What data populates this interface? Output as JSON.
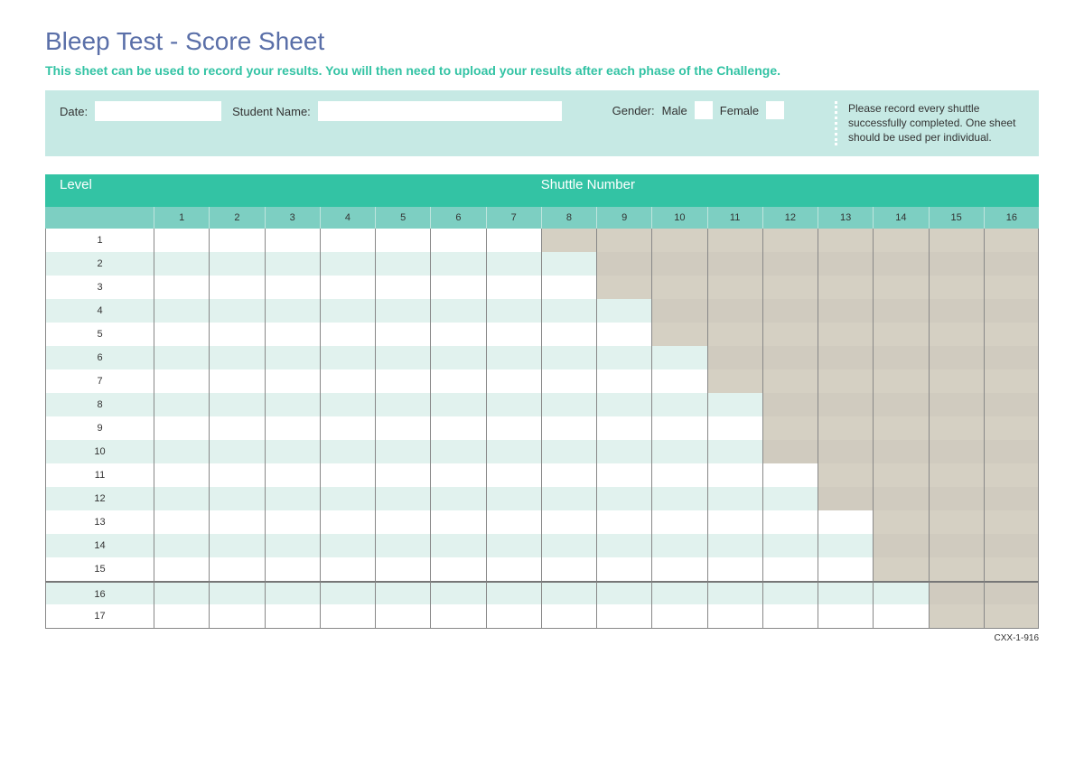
{
  "title": "Bleep Test - Score Sheet",
  "subtitle": "This sheet can be used to record your results. You will then need to upload your results after each phase of the Challenge.",
  "form": {
    "date_label": "Date:",
    "name_label": "Student Name:",
    "gender_label": "Gender:",
    "male_label": "Male",
    "female_label": "Female",
    "date_value": "",
    "name_value": "",
    "note": "Please record every shuttle successfully completed. One sheet should be used per individual."
  },
  "table": {
    "header_level": "Level",
    "header_shuttle": "Shuttle Number",
    "shuttle_count": 16,
    "levels": [
      1,
      2,
      3,
      4,
      5,
      6,
      7,
      8,
      9,
      10,
      11,
      12,
      13,
      14,
      15,
      16,
      17
    ],
    "shuttles_per_level": [
      7,
      8,
      8,
      9,
      9,
      10,
      10,
      11,
      11,
      11,
      12,
      12,
      13,
      13,
      13,
      14,
      14
    ],
    "colors": {
      "header_bg": "#33c3a4",
      "subheader_bg": "#7dcfc2",
      "active_odd": "#ffffff",
      "active_even": "#e1f2ee",
      "inactive_odd": "#d5d0c3",
      "inactive_even": "#d0cbbf",
      "border": "#888888",
      "title": "#5a6fa8",
      "subtitle": "#33c3a4",
      "formbar_bg": "#c6e9e4"
    }
  },
  "footnote": "CXX-1-916"
}
